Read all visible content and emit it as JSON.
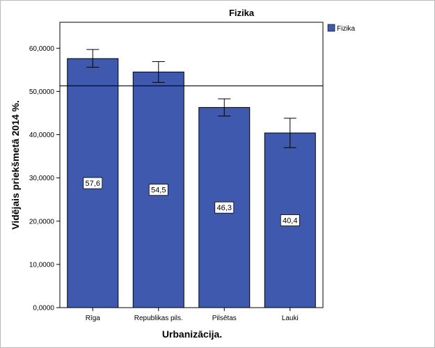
{
  "chart_data": {
    "type": "bar",
    "title": "Fizika",
    "xlabel": "Urbanizācija.",
    "ylabel": "Vidējais priekšmetā 2014 %.",
    "categories": [
      "Rīga",
      "Republikas pils.",
      "Pilsētas",
      "Lauki"
    ],
    "series": [
      {
        "name": "Fizika",
        "values": [
          57.6,
          54.5,
          46.3,
          40.4
        ],
        "labels": [
          "57,6",
          "54,5",
          "46,3",
          "40,4"
        ],
        "error_low": [
          55.6,
          52.1,
          44.3,
          37.0
        ],
        "error_high": [
          59.7,
          56.9,
          48.3,
          43.8
        ],
        "color": "#3e59ad"
      }
    ],
    "reference_line": 51.3,
    "ylim": [
      0,
      66
    ],
    "yticks": [
      0,
      10,
      20,
      30,
      40,
      50,
      60
    ],
    "ytick_labels": [
      "0,0000",
      "10,0000",
      "20,0000",
      "30,0000",
      "40,0000",
      "50,0000",
      "60,0000"
    ],
    "legend_position": "top-right",
    "grid": false
  }
}
